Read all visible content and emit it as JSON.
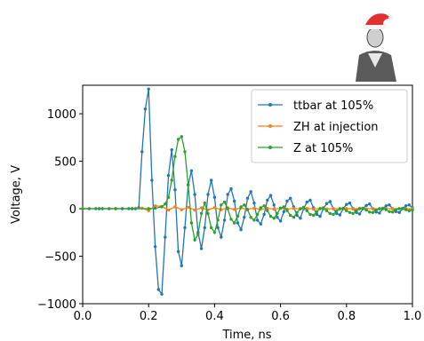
{
  "chart_data": {
    "type": "line",
    "title": "",
    "xlabel": "Time, ns",
    "ylabel": "Voltage, V",
    "xlim": [
      0.0,
      1.0
    ],
    "ylim": [
      -1000,
      1300
    ],
    "xticks": [
      0.0,
      0.2,
      0.4,
      0.6,
      0.8,
      1.0
    ],
    "xtick_labels": [
      "0.0",
      "0.2",
      "0.4",
      "0.6",
      "0.8",
      "1.0"
    ],
    "yticks": [
      -1000,
      -500,
      0,
      500,
      1000
    ],
    "ytick_labels": [
      "−1000",
      "−500",
      "0",
      "500",
      "1000"
    ],
    "grid": false,
    "legend_position": "top-right",
    "series": [
      {
        "name": "ttbar at 105%",
        "color": "#1f77b4",
        "marker": "dot",
        "x": [
          0.0,
          0.02,
          0.04,
          0.06,
          0.08,
          0.1,
          0.12,
          0.14,
          0.15,
          0.16,
          0.17,
          0.18,
          0.19,
          0.2,
          0.21,
          0.22,
          0.23,
          0.24,
          0.25,
          0.26,
          0.27,
          0.28,
          0.29,
          0.3,
          0.31,
          0.32,
          0.33,
          0.34,
          0.35,
          0.36,
          0.37,
          0.38,
          0.39,
          0.4,
          0.41,
          0.42,
          0.43,
          0.44,
          0.45,
          0.46,
          0.47,
          0.48,
          0.49,
          0.5,
          0.51,
          0.52,
          0.53,
          0.54,
          0.55,
          0.56,
          0.57,
          0.58,
          0.59,
          0.6,
          0.61,
          0.62,
          0.63,
          0.64,
          0.65,
          0.66,
          0.67,
          0.68,
          0.69,
          0.7,
          0.71,
          0.72,
          0.73,
          0.74,
          0.75,
          0.76,
          0.77,
          0.78,
          0.79,
          0.8,
          0.81,
          0.82,
          0.83,
          0.84,
          0.85,
          0.86,
          0.87,
          0.88,
          0.89,
          0.9,
          0.91,
          0.92,
          0.93,
          0.94,
          0.95,
          0.96,
          0.97,
          0.98,
          0.99,
          1.0
        ],
        "y": [
          0,
          0,
          0,
          0,
          0,
          0,
          0,
          0,
          0,
          0,
          10,
          600,
          1050,
          1260,
          300,
          -400,
          -850,
          -900,
          -300,
          350,
          620,
          200,
          -450,
          -600,
          -200,
          250,
          400,
          150,
          -250,
          -420,
          -200,
          150,
          300,
          120,
          -200,
          -300,
          -120,
          150,
          210,
          80,
          -150,
          -220,
          -90,
          110,
          180,
          60,
          -120,
          -160,
          -60,
          90,
          140,
          40,
          -90,
          -130,
          -30,
          80,
          110,
          20,
          -70,
          -100,
          0,
          70,
          90,
          10,
          -60,
          -80,
          0,
          55,
          75,
          0,
          -50,
          -65,
          0,
          45,
          60,
          0,
          -40,
          -55,
          0,
          35,
          50,
          0,
          -35,
          -45,
          0,
          30,
          40,
          0,
          -30,
          -40,
          0,
          30,
          40,
          10
        ]
      },
      {
        "name": "ZH at injection",
        "color": "#ff7f0e",
        "marker": "dot",
        "x": [
          0.0,
          0.05,
          0.1,
          0.15,
          0.18,
          0.2,
          0.22,
          0.24,
          0.26,
          0.28,
          0.3,
          0.32,
          0.34,
          0.36,
          0.38,
          0.4,
          0.42,
          0.44,
          0.46,
          0.48,
          0.5,
          0.52,
          0.54,
          0.56,
          0.58,
          0.6,
          0.62,
          0.64,
          0.66,
          0.68,
          0.7,
          0.72,
          0.74,
          0.76,
          0.78,
          0.8,
          0.82,
          0.84,
          0.86,
          0.88,
          0.9,
          0.92,
          0.94,
          0.96,
          0.98,
          1.0
        ],
        "y": [
          0,
          0,
          0,
          0,
          5,
          -20,
          30,
          25,
          -15,
          20,
          -10,
          15,
          -15,
          10,
          -12,
          12,
          -10,
          10,
          -8,
          8,
          -6,
          6,
          -5,
          5,
          -4,
          4,
          -4,
          4,
          -3,
          3,
          -3,
          3,
          -2,
          2,
          -2,
          2,
          -2,
          2,
          -1,
          1,
          -1,
          1,
          -1,
          1,
          0,
          0
        ]
      },
      {
        "name": "Z at 105%",
        "color": "#2ca02c",
        "marker": "dot",
        "x": [
          0.0,
          0.05,
          0.1,
          0.15,
          0.2,
          0.22,
          0.24,
          0.25,
          0.26,
          0.27,
          0.28,
          0.29,
          0.3,
          0.31,
          0.32,
          0.33,
          0.34,
          0.35,
          0.36,
          0.37,
          0.38,
          0.39,
          0.4,
          0.41,
          0.42,
          0.43,
          0.44,
          0.45,
          0.46,
          0.47,
          0.48,
          0.49,
          0.5,
          0.51,
          0.52,
          0.53,
          0.54,
          0.55,
          0.56,
          0.57,
          0.58,
          0.59,
          0.6,
          0.61,
          0.62,
          0.63,
          0.64,
          0.65,
          0.66,
          0.67,
          0.68,
          0.69,
          0.7,
          0.71,
          0.72,
          0.73,
          0.74,
          0.75,
          0.76,
          0.77,
          0.78,
          0.79,
          0.8,
          0.81,
          0.82,
          0.83,
          0.84,
          0.85,
          0.86,
          0.87,
          0.88,
          0.89,
          0.9,
          0.91,
          0.92,
          0.93,
          0.94,
          0.95,
          0.96,
          0.97,
          0.98,
          0.99,
          1.0
        ],
        "y": [
          0,
          0,
          0,
          0,
          0,
          5,
          20,
          50,
          120,
          300,
          550,
          730,
          760,
          600,
          250,
          -150,
          -330,
          -270,
          -50,
          60,
          -50,
          -200,
          -250,
          -120,
          40,
          70,
          0,
          -110,
          -150,
          -80,
          20,
          40,
          -10,
          -90,
          -120,
          -60,
          10,
          30,
          -20,
          -80,
          -100,
          -50,
          5,
          20,
          -20,
          -70,
          -90,
          -40,
          0,
          15,
          -20,
          -60,
          -70,
          -30,
          0,
          10,
          -20,
          -50,
          -60,
          -25,
          0,
          5,
          -20,
          -40,
          -50,
          -20,
          0,
          5,
          -15,
          -35,
          -40,
          -15,
          0,
          5,
          -10,
          -30,
          -35,
          -10,
          0,
          5,
          -10,
          -20,
          -15
        ]
      }
    ]
  }
}
